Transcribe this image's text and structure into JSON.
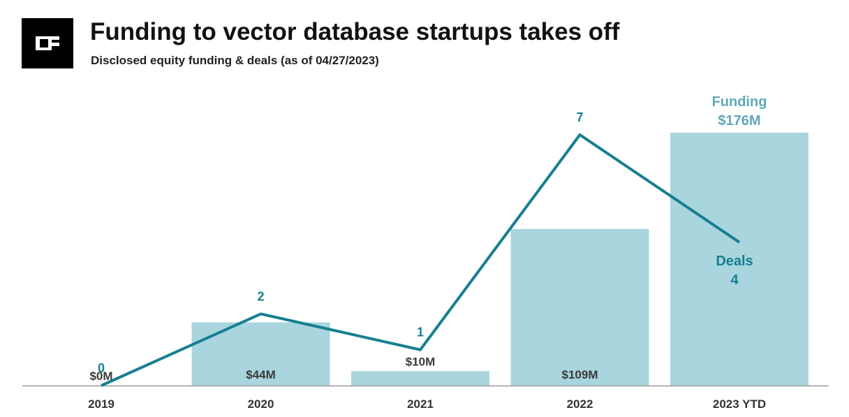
{
  "header": {
    "title": "Funding to vector database startups takes off",
    "subtitle": "Disclosed equity funding & deals (as of 04/27/2023)",
    "logo_icon": "cb-logo-icon"
  },
  "colors": {
    "bar": "#a8d5de",
    "line": "#167f90",
    "funding_legend": "#5fa8b8",
    "axis": "#9a9a9a"
  },
  "chart_data": {
    "type": "bar",
    "categories": [
      "2019",
      "2020",
      "2021",
      "2022",
      "2023 YTD"
    ],
    "series": [
      {
        "name": "Funding",
        "type": "bar",
        "axis": "left",
        "values": [
          0,
          44,
          10,
          109,
          176
        ],
        "labels": [
          "$0M",
          "$44M",
          "$10M",
          "$109M",
          "$176M"
        ]
      },
      {
        "name": "Deals",
        "type": "line",
        "axis": "right",
        "values": [
          0,
          2,
          1,
          7,
          4
        ],
        "labels": [
          "0",
          "2",
          "1",
          "7",
          "4"
        ]
      }
    ],
    "ylim": [
      0,
      176
    ],
    "y2lim": [
      0,
      7
    ],
    "legend": {
      "funding_title": "Funding",
      "funding_value": "$176M",
      "deals_title": "Deals",
      "deals_value": "4"
    },
    "grid": false
  }
}
